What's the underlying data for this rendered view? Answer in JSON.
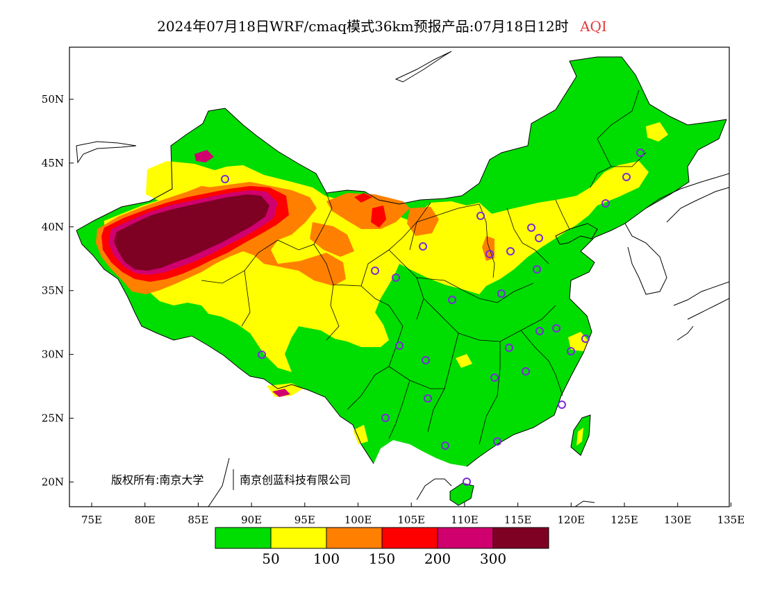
{
  "title": {
    "main": "2024年07月18日WRF/cmaq模式36km预报产品:07月18日12时",
    "variable": "AQI",
    "variable_color": "#e03a3a"
  },
  "axes": {
    "x_ticks": [
      "75E",
      "80E",
      "85E",
      "90E",
      "95E",
      "100E",
      "105E",
      "110E",
      "115E",
      "120E",
      "125E",
      "130E",
      "135E"
    ],
    "y_ticks": [
      "50N",
      "45N",
      "40N",
      "35N",
      "30N",
      "25N",
      "20N"
    ]
  },
  "copyright": {
    "owner_a": "版权所有:南京大学",
    "owner_b": "南京创蓝科技有限公司"
  },
  "legend": {
    "colors": [
      "#00dd00",
      "#ffff00",
      "#ff8000",
      "#ff0000",
      "#d0006f",
      "#7e0023"
    ],
    "labels": [
      "50",
      "100",
      "150",
      "200",
      "300"
    ]
  },
  "colors": {
    "good": "#00dd00",
    "moderate": "#ffff00",
    "usg": "#ff8000",
    "unhealthy": "#ff0000",
    "very_unhealthy": "#d0006f",
    "hazardous": "#7e0023",
    "station_marker": "#7a2bd8"
  }
}
